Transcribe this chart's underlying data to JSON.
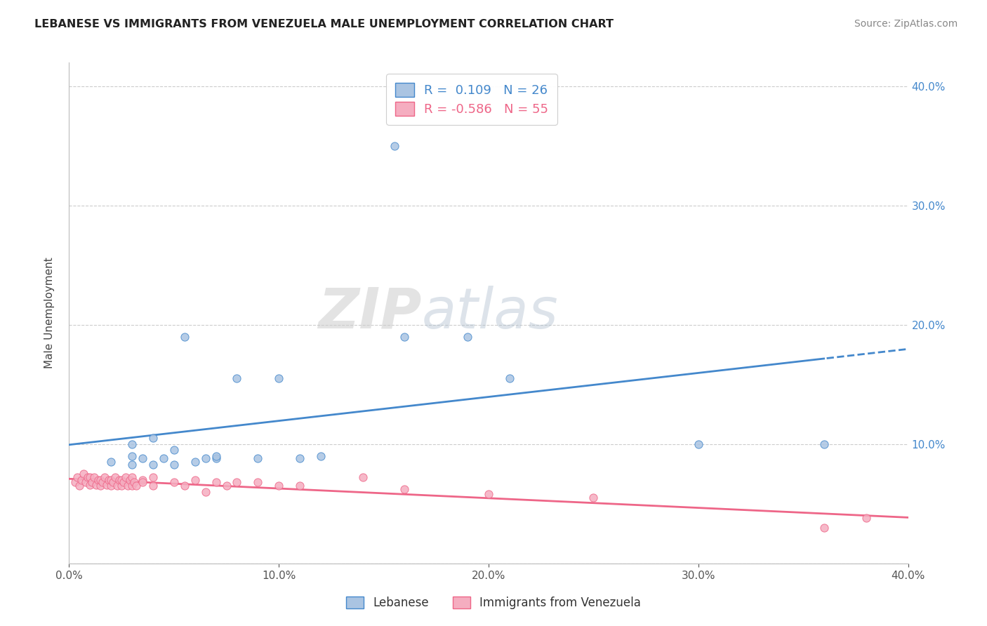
{
  "title": "LEBANESE VS IMMIGRANTS FROM VENEZUELA MALE UNEMPLOYMENT CORRELATION CHART",
  "source": "Source: ZipAtlas.com",
  "ylabel": "Male Unemployment",
  "xlim": [
    0.0,
    0.4
  ],
  "ylim": [
    0.0,
    0.42
  ],
  "yticks": [
    0.0,
    0.1,
    0.2,
    0.3,
    0.4
  ],
  "xticks": [
    0.0,
    0.1,
    0.2,
    0.3,
    0.4
  ],
  "xtick_labels": [
    "0.0%",
    "10.0%",
    "20.0%",
    "30.0%",
    "40.0%"
  ],
  "ytick_labels": [
    "",
    "10.0%",
    "20.0%",
    "30.0%",
    "40.0%"
  ],
  "blue_R": "0.109",
  "blue_N": 26,
  "pink_R": "-0.586",
  "pink_N": 55,
  "blue_color": "#aac4e2",
  "pink_color": "#f5adc0",
  "blue_line_color": "#4488cc",
  "pink_line_color": "#ee6688",
  "watermark_zip": "ZIP",
  "watermark_atlas": "atlas",
  "legend_label_blue": "Lebanese",
  "legend_label_pink": "Immigrants from Venezuela",
  "blue_scatter_x": [
    0.02,
    0.03,
    0.03,
    0.035,
    0.04,
    0.045,
    0.05,
    0.055,
    0.065,
    0.07,
    0.08,
    0.09,
    0.1,
    0.11,
    0.12,
    0.155,
    0.16,
    0.19,
    0.21,
    0.3,
    0.36,
    0.03,
    0.04,
    0.05,
    0.06,
    0.07
  ],
  "blue_scatter_y": [
    0.085,
    0.083,
    0.09,
    0.088,
    0.083,
    0.088,
    0.083,
    0.19,
    0.088,
    0.088,
    0.155,
    0.088,
    0.155,
    0.088,
    0.09,
    0.35,
    0.19,
    0.19,
    0.155,
    0.1,
    0.1,
    0.1,
    0.105,
    0.095,
    0.085,
    0.09
  ],
  "pink_scatter_x": [
    0.003,
    0.004,
    0.005,
    0.006,
    0.007,
    0.008,
    0.009,
    0.01,
    0.01,
    0.011,
    0.012,
    0.013,
    0.014,
    0.015,
    0.015,
    0.016,
    0.017,
    0.018,
    0.019,
    0.02,
    0.02,
    0.021,
    0.022,
    0.023,
    0.024,
    0.025,
    0.025,
    0.026,
    0.027,
    0.028,
    0.029,
    0.03,
    0.03,
    0.031,
    0.032,
    0.035,
    0.035,
    0.04,
    0.04,
    0.05,
    0.055,
    0.06,
    0.065,
    0.07,
    0.075,
    0.08,
    0.09,
    0.1,
    0.11,
    0.14,
    0.16,
    0.2,
    0.25,
    0.36,
    0.38
  ],
  "pink_scatter_y": [
    0.068,
    0.072,
    0.065,
    0.07,
    0.075,
    0.068,
    0.072,
    0.066,
    0.072,
    0.068,
    0.072,
    0.066,
    0.07,
    0.065,
    0.07,
    0.068,
    0.072,
    0.066,
    0.07,
    0.065,
    0.07,
    0.068,
    0.072,
    0.065,
    0.07,
    0.065,
    0.07,
    0.068,
    0.072,
    0.065,
    0.07,
    0.065,
    0.072,
    0.068,
    0.065,
    0.07,
    0.068,
    0.065,
    0.072,
    0.068,
    0.065,
    0.07,
    0.06,
    0.068,
    0.065,
    0.068,
    0.068,
    0.065,
    0.065,
    0.072,
    0.062,
    0.058,
    0.055,
    0.03,
    0.038
  ]
}
